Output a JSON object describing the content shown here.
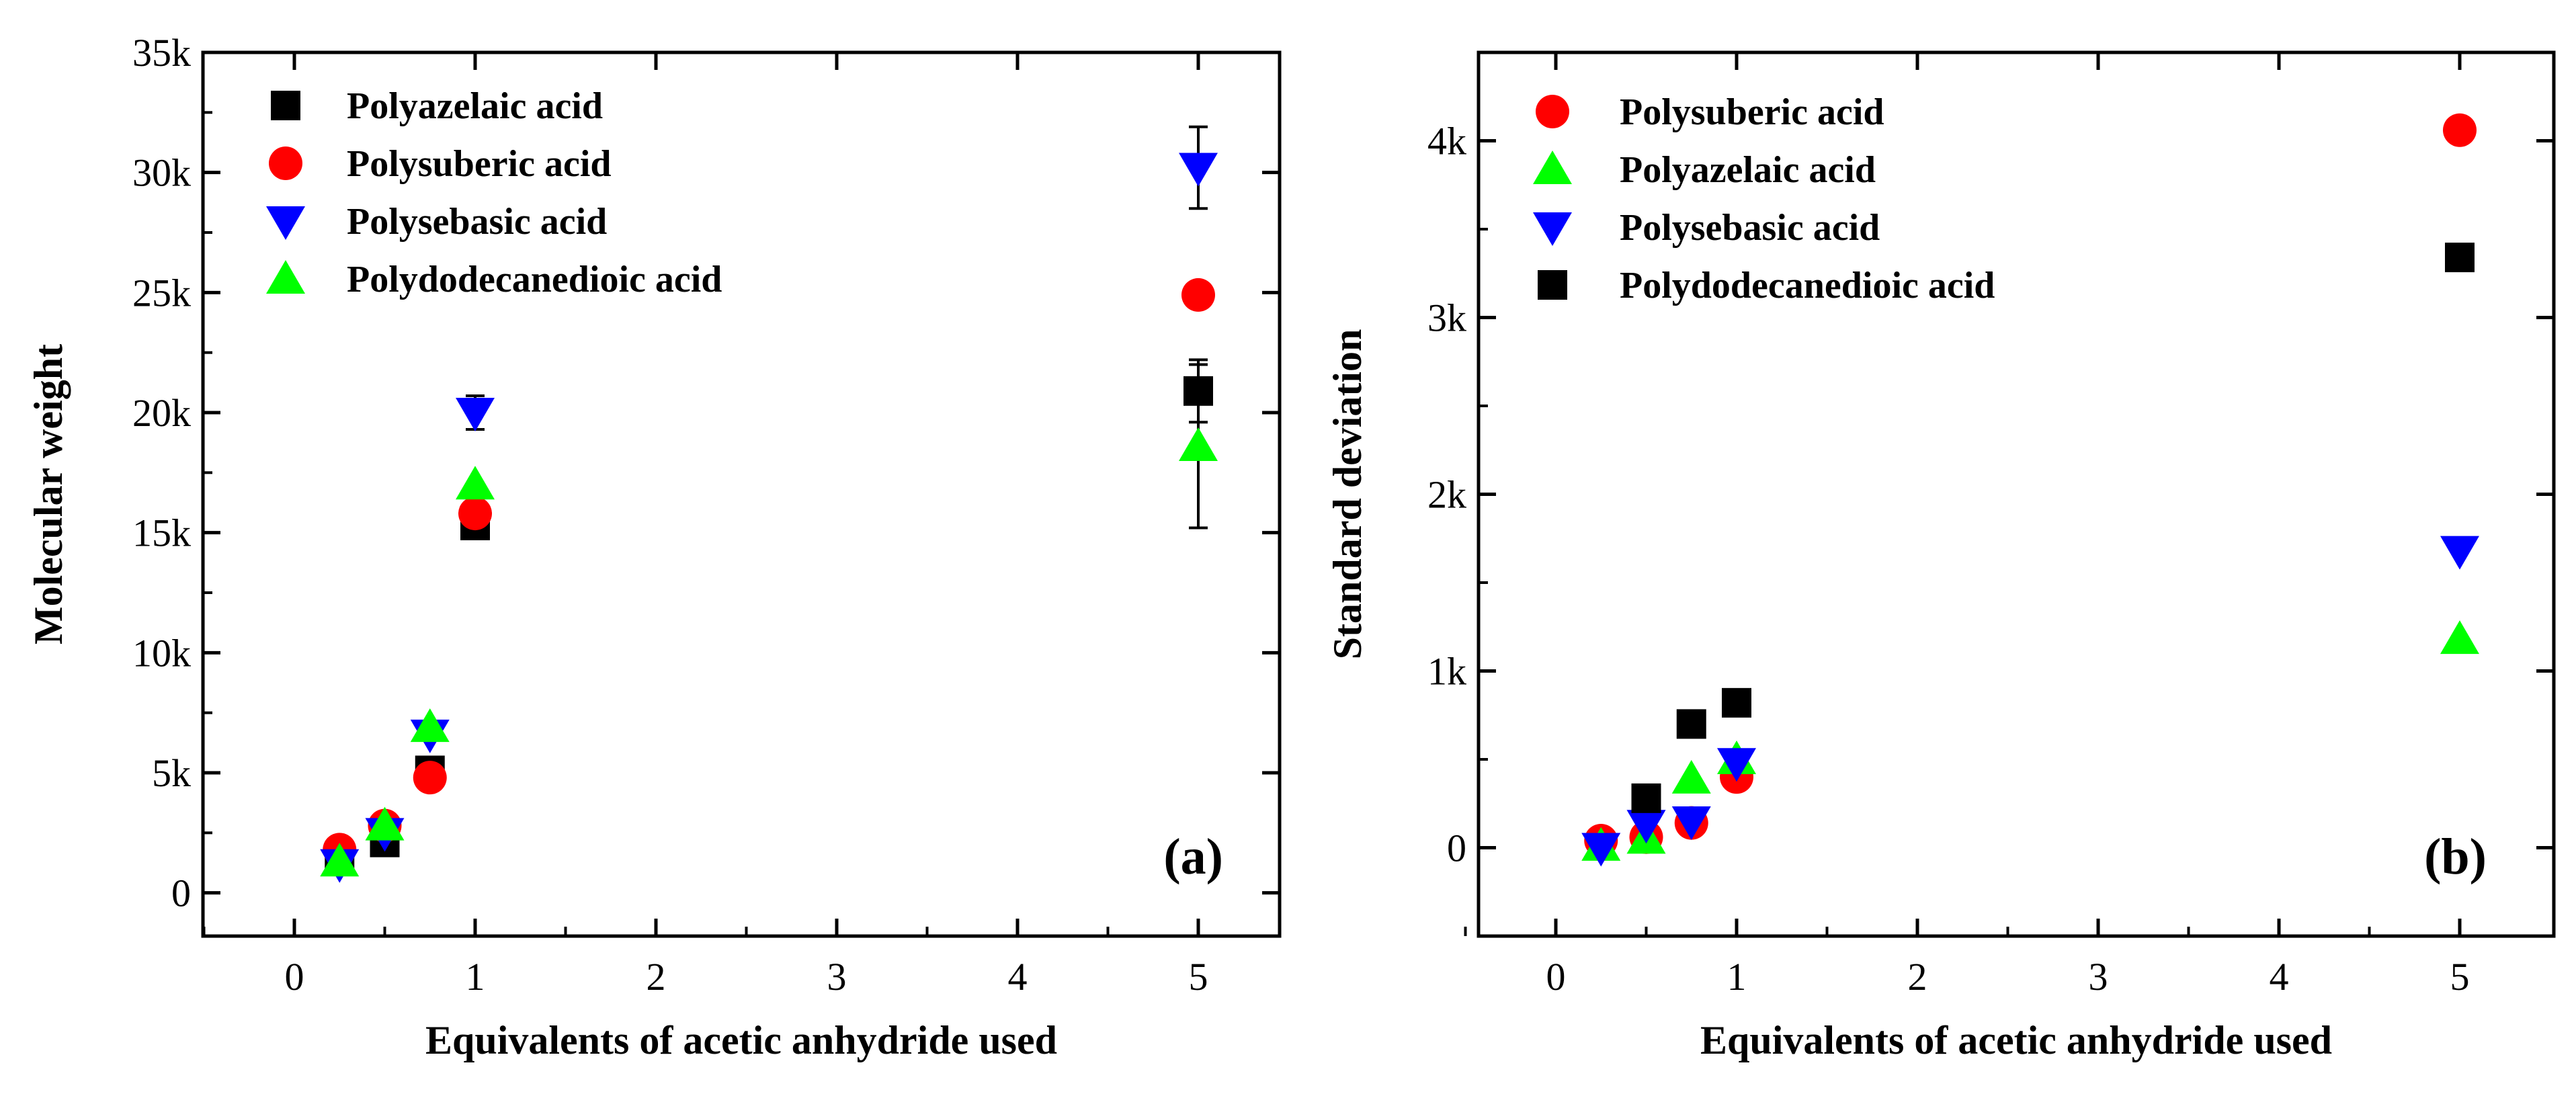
{
  "chart_data": [
    {
      "type": "scatter",
      "panel_label": "(a)",
      "xlabel": "Equivalents of acetic anhydride used",
      "ylabel": "Molecular weight",
      "x_ticks": [
        0,
        1,
        2,
        3,
        4,
        5
      ],
      "x_tick_labels": [
        "0",
        "1",
        "2",
        "3",
        "4",
        "5"
      ],
      "y_ticks": [
        0,
        5000,
        10000,
        15000,
        20000,
        25000,
        30000,
        35000
      ],
      "y_tick_labels": [
        "0",
        "5k",
        "10k",
        "15k",
        "20k",
        "25k",
        "30k",
        "35k"
      ],
      "xlim": [
        -0.5,
        5.4
      ],
      "ylim": [
        -1800,
        35000
      ],
      "grid": false,
      "legend_position": "top-left",
      "series": [
        {
          "name": "Polyazelaic acid",
          "marker": "square",
          "color": "#000000",
          "x": [
            0.25,
            0.5,
            0.75,
            1,
            5
          ],
          "y": [
            1400,
            2100,
            5100,
            15300,
            20900
          ],
          "err": [
            0,
            0,
            0,
            0,
            1300
          ]
        },
        {
          "name": "Polysuberic acid",
          "marker": "circle",
          "color": "#ff0000",
          "x": [
            0.25,
            0.5,
            0.75,
            1,
            5
          ],
          "y": [
            1800,
            2800,
            4800,
            15800,
            24900
          ],
          "err": [
            0,
            0,
            0,
            0,
            0
          ]
        },
        {
          "name": "Polysebasic acid",
          "marker": "triangle-down",
          "color": "#0000ff",
          "x": [
            0.25,
            0.5,
            0.75,
            1,
            5
          ],
          "y": [
            1200,
            2500,
            6600,
            20000,
            30200
          ],
          "err": [
            0,
            0,
            0,
            700,
            1700
          ]
        },
        {
          "name": "Polydodecanedioic acid",
          "marker": "triangle-up",
          "color": "#00ff00",
          "x": [
            0.25,
            0.5,
            0.75,
            1,
            5
          ],
          "y": [
            1300,
            2800,
            6900,
            17000,
            18600
          ],
          "err": [
            0,
            0,
            0,
            0,
            3400
          ]
        }
      ]
    },
    {
      "type": "scatter",
      "panel_label": "(b)",
      "xlabel": "Equivalents of acetic anhydride used",
      "ylabel": "Standard deviation",
      "x_ticks": [
        0,
        1,
        2,
        3,
        4,
        5
      ],
      "x_tick_labels": [
        "0",
        "1",
        "2",
        "3",
        "4",
        "5"
      ],
      "y_ticks": [
        0,
        1000,
        2000,
        3000,
        4000
      ],
      "y_tick_labels": [
        "0",
        "1k",
        "2k",
        "3k",
        "4k"
      ],
      "xlim": [
        -0.5,
        5.4
      ],
      "ylim": [
        -500,
        4500
      ],
      "grid": false,
      "legend_position": "top-left",
      "series": [
        {
          "name": "Polysuberic acid",
          "marker": "circle",
          "color": "#ff0000",
          "x": [
            0.25,
            0.5,
            0.75,
            1,
            5
          ],
          "y": [
            40,
            60,
            140,
            400,
            4060
          ]
        },
        {
          "name": "Polyazelaic acid",
          "marker": "triangle-up",
          "color": "#00ff00",
          "x": [
            0.25,
            0.5,
            0.75,
            1,
            5
          ],
          "y": [
            10,
            50,
            390,
            500,
            1180
          ]
        },
        {
          "name": "Polysebasic acid",
          "marker": "triangle-down",
          "color": "#0000ff",
          "x": [
            0.25,
            0.5,
            0.75,
            1,
            5
          ],
          "y": [
            0,
            130,
            150,
            480,
            1680
          ]
        },
        {
          "name": "Polydodecanedioic acid",
          "marker": "square",
          "color": "#000000",
          "x": [
            0.5,
            0.75,
            1,
            5
          ],
          "y": [
            280,
            700,
            820,
            3340
          ]
        }
      ]
    }
  ]
}
